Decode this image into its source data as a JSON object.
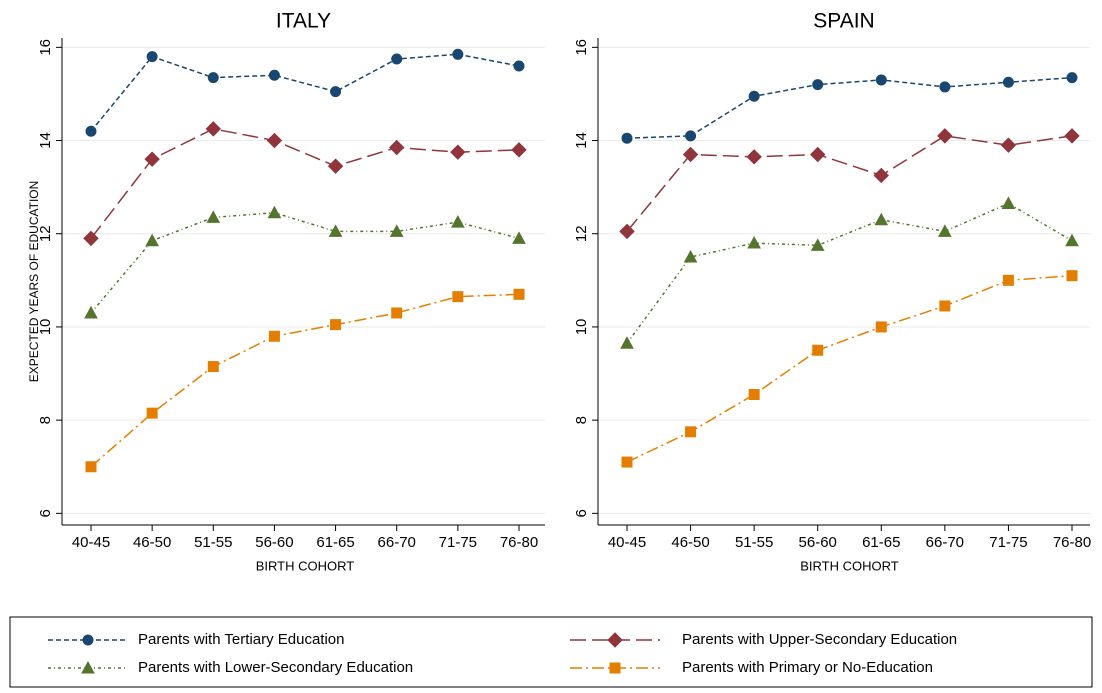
{
  "chart_data": [
    {
      "type": "line",
      "title": "ITALY",
      "xlabel": "BIRTH COHORT",
      "ylabel": "EXPECTED YEARS OF EDUCATION",
      "categories": [
        "40-45",
        "46-50",
        "51-55",
        "56-60",
        "61-65",
        "66-70",
        "71-75",
        "76-80"
      ],
      "ylim": [
        5.75,
        16.2
      ],
      "yticks": [
        6,
        8,
        10,
        12,
        14,
        16
      ],
      "grid": true,
      "series": [
        {
          "name": "Parents with Tertiary Education",
          "color": "#1a476f",
          "marker": "circle",
          "dash": "5,3",
          "values": [
            14.2,
            15.8,
            15.35,
            15.4,
            15.05,
            15.75,
            15.85,
            15.6
          ]
        },
        {
          "name": "Parents with Upper-Secondary Education",
          "color": "#90353b",
          "marker": "diamond",
          "dash": "16,6",
          "values": [
            11.9,
            13.6,
            14.25,
            14.0,
            13.45,
            13.85,
            13.75,
            13.8
          ]
        },
        {
          "name": "Parents with Lower-Secondary Education",
          "color": "#55752f",
          "marker": "triangle",
          "dash": "3,3,1,3",
          "values": [
            10.3,
            11.85,
            12.35,
            12.45,
            12.05,
            12.05,
            12.25,
            11.9
          ]
        },
        {
          "name": "Parents with Primary or No-Education",
          "color": "#e37e00",
          "marker": "square",
          "dash": "12,4,2,4",
          "values": [
            7.0,
            8.15,
            9.15,
            9.8,
            10.05,
            10.3,
            10.65,
            10.7
          ]
        }
      ]
    },
    {
      "type": "line",
      "title": "SPAIN",
      "xlabel": "BIRTH COHORT",
      "categories": [
        "40-45",
        "46-50",
        "51-55",
        "56-60",
        "61-65",
        "66-70",
        "71-75",
        "76-80"
      ],
      "ylim": [
        5.75,
        16.2
      ],
      "yticks": [
        6,
        8,
        10,
        12,
        14,
        16
      ],
      "grid": true,
      "series": [
        {
          "color": "#1a476f",
          "marker": "circle",
          "dash": "5,3",
          "values": [
            14.05,
            14.1,
            14.95,
            15.2,
            15.3,
            15.15,
            15.25,
            15.35
          ]
        },
        {
          "color": "#90353b",
          "marker": "diamond",
          "dash": "16,6",
          "values": [
            12.05,
            13.7,
            13.65,
            13.7,
            13.25,
            14.1,
            13.9,
            14.1
          ]
        },
        {
          "color": "#55752f",
          "marker": "triangle",
          "dash": "3,3,1,3",
          "values": [
            9.65,
            11.5,
            11.8,
            11.75,
            12.3,
            12.05,
            12.65,
            11.85
          ]
        },
        {
          "color": "#e37e00",
          "marker": "square",
          "dash": "12,4,2,4",
          "values": [
            7.1,
            7.75,
            8.55,
            9.5,
            10.0,
            10.45,
            11.0,
            11.1
          ]
        }
      ]
    }
  ]
}
